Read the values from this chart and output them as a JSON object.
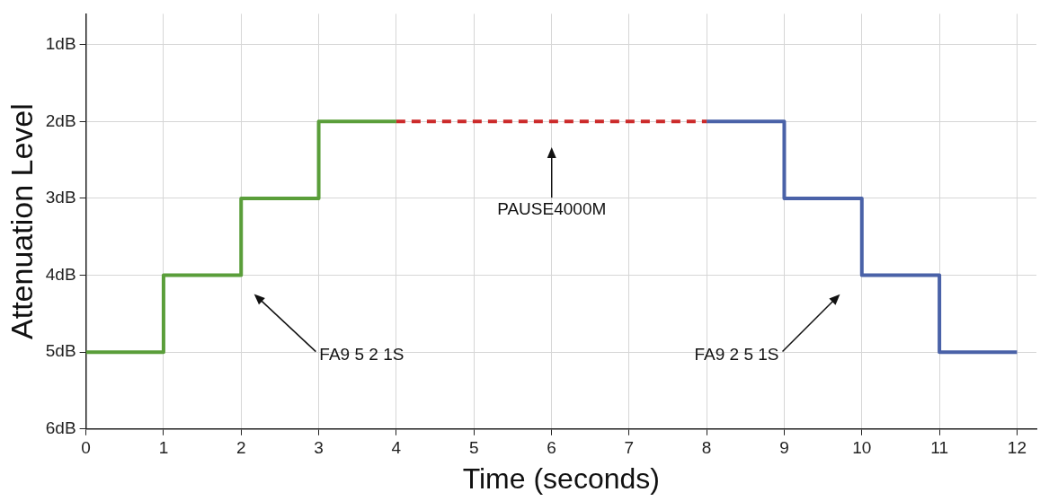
{
  "chart_data": {
    "type": "step",
    "xlabel": "Time (seconds)",
    "ylabel": "Attenuation Level",
    "xlim": [
      0,
      12.25
    ],
    "xticks": [
      0,
      1,
      2,
      3,
      4,
      5,
      6,
      7,
      8,
      9,
      10,
      11,
      12
    ],
    "ylim": [
      6,
      0.6
    ],
    "yticks": [
      {
        "value": 1,
        "label": "1dB"
      },
      {
        "value": 2,
        "label": "2dB"
      },
      {
        "value": 3,
        "label": "3dB"
      },
      {
        "value": 4,
        "label": "4dB"
      },
      {
        "value": 5,
        "label": "5dB"
      },
      {
        "value": 6,
        "label": "6dB"
      }
    ],
    "grid": true,
    "legend": false,
    "marker": "none",
    "series": [
      {
        "color": "#5a9e3a",
        "x": [
          0,
          1,
          2,
          3,
          4
        ],
        "values": [
          5,
          4,
          3,
          2,
          2
        ]
      },
      {
        "color": "#cc2a2a",
        "x": [
          4,
          8
        ],
        "values": [
          2,
          2
        ],
        "line_style": "dashed"
      },
      {
        "color": "#4a62a8",
        "x": [
          8,
          9,
          10,
          11,
          12
        ],
        "values": [
          2,
          3,
          4,
          5,
          5
        ]
      }
    ],
    "annotations": [
      "PAUSE4000M",
      "FA9 5 2 1S",
      "FA9 2 5 1S"
    ]
  }
}
